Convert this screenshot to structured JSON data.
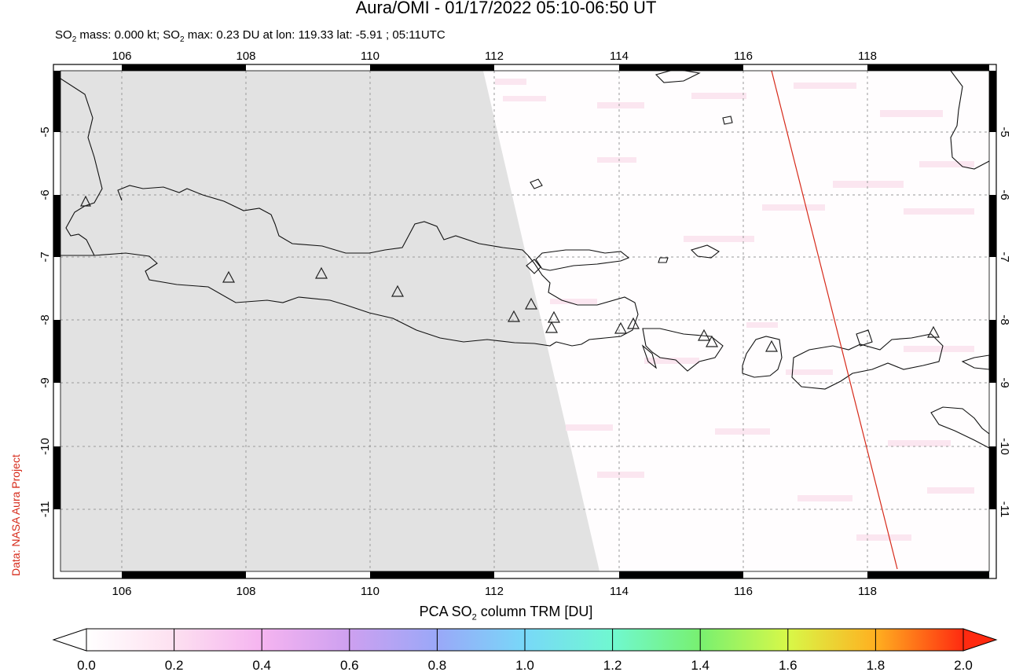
{
  "title": "Aura/OMI - 01/17/2022 05:10-06:50 UT",
  "subtitle": {
    "mass_prefix": "SO",
    "mass_sub": "2",
    "mass_text": " mass: 0.000 kt; SO",
    "max_sub": "2",
    "max_text": " max: 0.23 DU at lon: 119.33 lat: -5.91 ; 05:11UTC"
  },
  "credit": "Data: NASA Aura Project",
  "colorbar": {
    "title_prefix": "PCA SO",
    "title_sub": "2",
    "title_suffix": " column TRM [DU]",
    "ticks": [
      "0.0",
      "0.2",
      "0.4",
      "0.6",
      "0.8",
      "1.0",
      "1.2",
      "1.4",
      "1.6",
      "1.8",
      "2.0"
    ],
    "min": 0.0,
    "max": 2.0,
    "colors": [
      "#ffffff",
      "#fde0f0",
      "#f5b4f0",
      "#cda0f0",
      "#9aa8f8",
      "#78d8f8",
      "#70f8d0",
      "#78f070",
      "#d8f848",
      "#ffb020",
      "#ff2a10"
    ]
  },
  "map": {
    "lon_range": [
      104.9,
      120.0
    ],
    "lat_range": [
      -12.1,
      -4.0
    ],
    "lon_ticks": [
      "106",
      "108",
      "110",
      "112",
      "114",
      "116",
      "118"
    ],
    "lat_ticks": [
      "-5",
      "-6",
      "-7",
      "-8",
      "-9",
      "-10",
      "-11"
    ],
    "no_data_color": "#e2e2e2",
    "swath_edge_color": "#d62a1a",
    "volcano_count": 17
  }
}
